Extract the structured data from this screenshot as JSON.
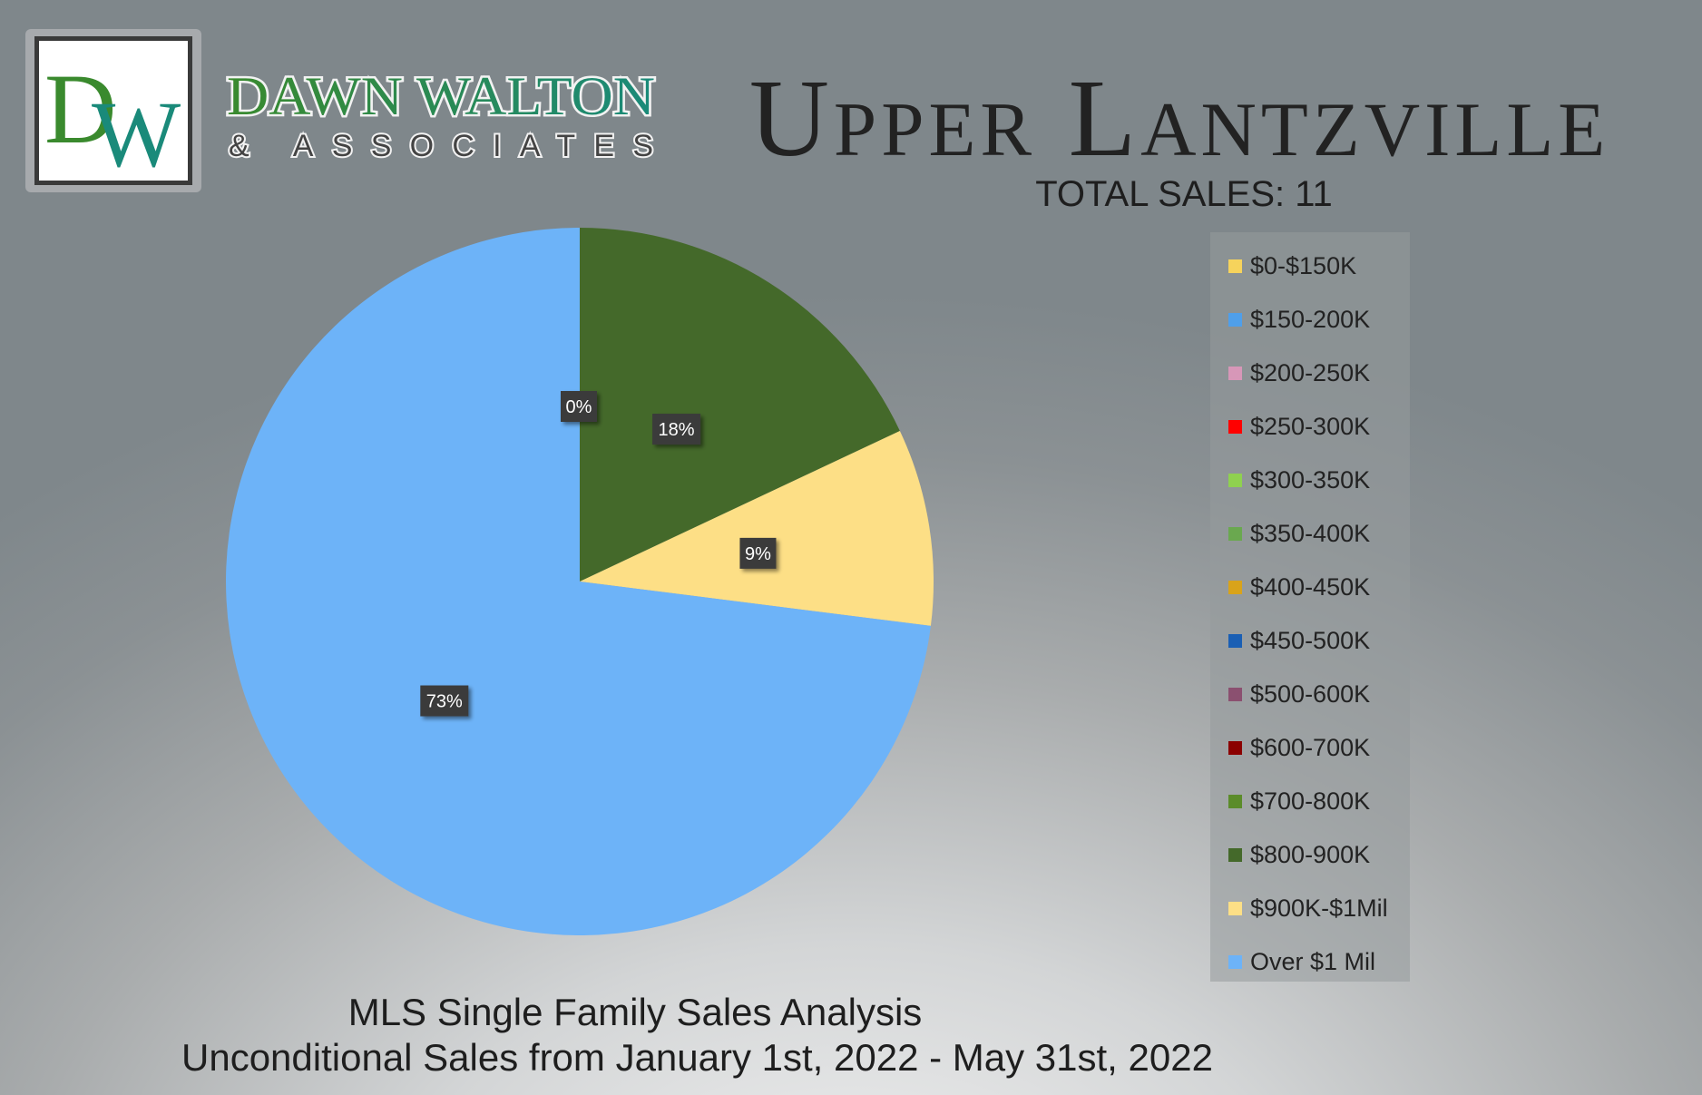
{
  "brand": {
    "monogram": "DW",
    "name_line1": "DAWN WALTON",
    "name_line2": "& ASSOCIATES",
    "colors": {
      "green": "#3a8a2e",
      "teal": "#1a8a7a",
      "border": "#3a3a3a"
    }
  },
  "header": {
    "title": "Upper Lantzville",
    "total_sales": "TOTAL SALES: 11"
  },
  "footer": {
    "line1": "MLS Single Family Sales Analysis",
    "line2": "Unconditional Sales from January 1st, 2022 - May 31st, 2022"
  },
  "chart_data": {
    "type": "pie",
    "categories": [
      "$0-$150K",
      "$150-200K",
      "$200-250K",
      "$250-300K",
      "$300-350K",
      "$350-400K",
      "$400-450K",
      "$450-500K",
      "$500-600K",
      "$600-700K",
      "$700-800K",
      "$800-900K",
      "$900K-$1Mil",
      "Over $1 Mil"
    ],
    "values": [
      0,
      0,
      0,
      0,
      0,
      0,
      0,
      0,
      0,
      0,
      0,
      18,
      9,
      73
    ],
    "colors": [
      "#f6d35c",
      "#4f9fea",
      "#d797b8",
      "#ff0000",
      "#8fd14f",
      "#6aa84f",
      "#d9a31a",
      "#1a5fb4",
      "#8b5070",
      "#8b0000",
      "#5b8c2a",
      "#44692a",
      "#fddf86",
      "#6db3f8"
    ],
    "data_labels": [
      {
        "category": "$800-900K",
        "text": "18%"
      },
      {
        "category": "$900K-$1Mil",
        "text": "9%"
      },
      {
        "category": "Over $1 Mil",
        "text": "73%"
      },
      {
        "category": "$0-$150K",
        "text": "0%"
      }
    ],
    "legend_position": "right"
  }
}
